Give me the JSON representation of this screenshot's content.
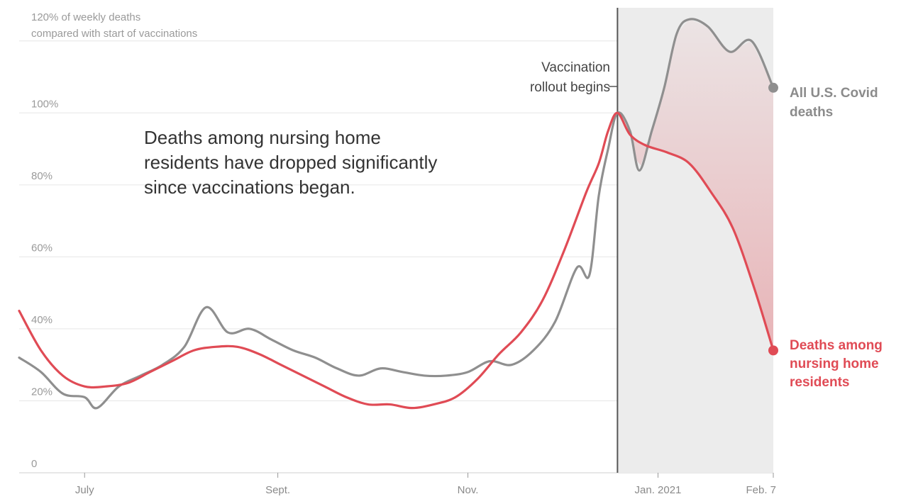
{
  "chart_data": {
    "type": "line",
    "ylabel_lines": [
      "120% of weekly deaths",
      "compared with start of vaccinations"
    ],
    "y_ticks": [
      {
        "value": 0,
        "label": "0"
      },
      {
        "value": 20,
        "label": "20%"
      },
      {
        "value": 40,
        "label": "40%"
      },
      {
        "value": 60,
        "label": "60%"
      },
      {
        "value": 80,
        "label": "80%"
      },
      {
        "value": 100,
        "label": "100%"
      }
    ],
    "ylim": [
      0,
      130
    ],
    "x_range": [
      "2020-06-10",
      "2021-02-07"
    ],
    "x_ticks": [
      {
        "date": "2020-07-01",
        "label": "July"
      },
      {
        "date": "2020-09-01",
        "label": "Sept."
      },
      {
        "date": "2020-11-01",
        "label": "Nov."
      },
      {
        "date": "2021-01-01",
        "label": "Jan. 2021"
      },
      {
        "date": "2021-02-07",
        "label": "Feb. 7"
      }
    ],
    "grid": true,
    "vaccination_start": "2020-12-19",
    "rollout_label_lines": [
      "Vaccination",
      "rollout begins"
    ],
    "annotation_lines": [
      "Deaths among nursing home",
      "residents have dropped significantly",
      "since vaccinations began."
    ],
    "series": [
      {
        "name": "All U.S. Covid deaths",
        "label_lines": [
          "All U.S. Covid",
          "deaths"
        ],
        "color": "#8f8f8f",
        "points": [
          [
            "2020-06-10",
            32
          ],
          [
            "2020-06-17",
            28
          ],
          [
            "2020-06-24",
            22
          ],
          [
            "2020-07-01",
            21
          ],
          [
            "2020-07-05",
            18
          ],
          [
            "2020-07-12",
            24
          ],
          [
            "2020-07-19",
            27
          ],
          [
            "2020-07-26",
            30
          ],
          [
            "2020-08-02",
            35
          ],
          [
            "2020-08-09",
            46
          ],
          [
            "2020-08-16",
            39
          ],
          [
            "2020-08-23",
            40
          ],
          [
            "2020-08-30",
            37
          ],
          [
            "2020-09-06",
            34
          ],
          [
            "2020-09-13",
            32
          ],
          [
            "2020-09-20",
            29
          ],
          [
            "2020-09-27",
            27
          ],
          [
            "2020-10-04",
            29
          ],
          [
            "2020-10-11",
            28
          ],
          [
            "2020-10-18",
            27
          ],
          [
            "2020-10-25",
            27
          ],
          [
            "2020-11-01",
            28
          ],
          [
            "2020-11-08",
            31
          ],
          [
            "2020-11-15",
            30
          ],
          [
            "2020-11-22",
            34
          ],
          [
            "2020-11-29",
            42
          ],
          [
            "2020-12-06",
            57
          ],
          [
            "2020-12-10",
            55
          ],
          [
            "2020-12-13",
            77
          ],
          [
            "2020-12-16",
            90
          ],
          [
            "2020-12-19",
            100
          ],
          [
            "2020-12-23",
            95
          ],
          [
            "2020-12-26",
            84
          ],
          [
            "2020-12-30",
            95
          ],
          [
            "2021-01-03",
            107
          ],
          [
            "2021-01-07",
            122
          ],
          [
            "2021-01-11",
            126
          ],
          [
            "2021-01-17",
            124
          ],
          [
            "2021-01-24",
            117
          ],
          [
            "2021-01-31",
            120
          ],
          [
            "2021-02-07",
            107
          ]
        ]
      },
      {
        "name": "Deaths among nursing home residents",
        "label_lines": [
          "Deaths among",
          "nursing home",
          "residents"
        ],
        "color": "#e04b55",
        "points": [
          [
            "2020-06-10",
            45
          ],
          [
            "2020-06-17",
            34
          ],
          [
            "2020-06-24",
            27
          ],
          [
            "2020-07-01",
            24
          ],
          [
            "2020-07-08",
            24
          ],
          [
            "2020-07-15",
            25
          ],
          [
            "2020-07-22",
            28
          ],
          [
            "2020-07-29",
            31
          ],
          [
            "2020-08-05",
            34
          ],
          [
            "2020-08-12",
            35
          ],
          [
            "2020-08-19",
            35
          ],
          [
            "2020-08-26",
            33
          ],
          [
            "2020-09-02",
            30
          ],
          [
            "2020-09-09",
            27
          ],
          [
            "2020-09-16",
            24
          ],
          [
            "2020-09-23",
            21
          ],
          [
            "2020-09-30",
            19
          ],
          [
            "2020-10-07",
            19
          ],
          [
            "2020-10-14",
            18
          ],
          [
            "2020-10-21",
            19
          ],
          [
            "2020-10-28",
            21
          ],
          [
            "2020-11-04",
            26
          ],
          [
            "2020-11-11",
            33
          ],
          [
            "2020-11-18",
            39
          ],
          [
            "2020-11-25",
            48
          ],
          [
            "2020-12-02",
            62
          ],
          [
            "2020-12-09",
            78
          ],
          [
            "2020-12-13",
            86
          ],
          [
            "2020-12-16",
            95
          ],
          [
            "2020-12-19",
            100
          ],
          [
            "2020-12-23",
            94
          ],
          [
            "2020-12-28",
            91
          ],
          [
            "2021-01-04",
            89
          ],
          [
            "2021-01-11",
            86
          ],
          [
            "2021-01-18",
            78
          ],
          [
            "2021-01-25",
            68
          ],
          [
            "2021-02-01",
            51
          ],
          [
            "2021-02-07",
            34
          ]
        ]
      }
    ]
  }
}
